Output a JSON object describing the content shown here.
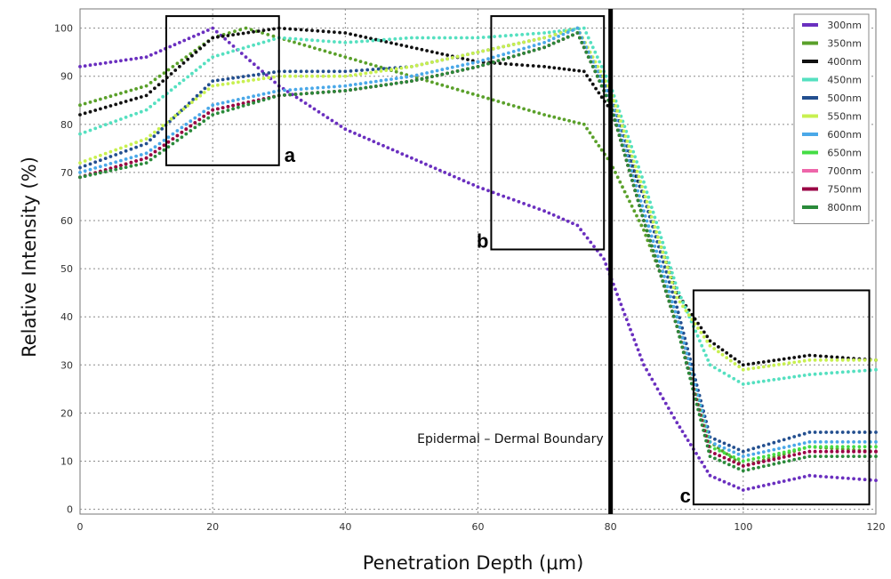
{
  "chart_data": {
    "type": "scatter",
    "title": "",
    "xlabel": "Penetration Depth (μm)",
    "ylabel": "Relative Intensity (%)",
    "xlim": [
      0,
      120
    ],
    "ylim": [
      -1,
      104
    ],
    "xticks": [
      0,
      20,
      40,
      60,
      80,
      100,
      120
    ],
    "yticks": [
      0,
      10,
      20,
      30,
      40,
      50,
      60,
      70,
      80,
      90,
      100
    ],
    "grid": true,
    "legend_position": "top-right",
    "boundary": {
      "x": 80,
      "label": "Epidermal – Dermal Boundary"
    },
    "regions": [
      {
        "label": "a",
        "x": [
          13,
          30
        ],
        "y": [
          71.5,
          102.5
        ]
      },
      {
        "label": "b",
        "x": [
          62,
          79
        ],
        "y": [
          54,
          102.5
        ]
      },
      {
        "label": "c",
        "x": [
          92.5,
          119
        ],
        "y": [
          1,
          45.5
        ]
      }
    ],
    "series": [
      {
        "name": "300nm",
        "color": "#6a2fbf",
        "x": [
          0,
          10,
          20,
          30,
          40,
          50,
          60,
          70,
          75,
          79,
          85,
          90,
          95,
          100,
          110,
          120
        ],
        "y": [
          92,
          94,
          100,
          88,
          79,
          73,
          67,
          62,
          59,
          52,
          30,
          18,
          7,
          4,
          7,
          6
        ]
      },
      {
        "name": "350nm",
        "color": "#5aa02a",
        "x": [
          0,
          10,
          20,
          25,
          30,
          40,
          50,
          60,
          70,
          76,
          80,
          85,
          90,
          95,
          100,
          110,
          120
        ],
        "y": [
          84,
          88,
          98,
          100,
          98,
          94,
          90,
          86,
          82,
          80,
          72,
          58,
          40,
          14,
          9,
          13,
          12
        ]
      },
      {
        "name": "400nm",
        "color": "#111111",
        "x": [
          0,
          10,
          20,
          30,
          40,
          50,
          60,
          70,
          76,
          80,
          85,
          90,
          95,
          100,
          110,
          120
        ],
        "y": [
          82,
          86,
          98,
          100,
          99,
          96,
          93,
          92,
          91,
          83,
          65,
          45,
          35,
          30,
          32,
          31
        ]
      },
      {
        "name": "450nm",
        "color": "#55e0c0",
        "x": [
          0,
          10,
          20,
          30,
          40,
          50,
          60,
          70,
          76,
          80,
          85,
          90,
          95,
          100,
          110,
          120
        ],
        "y": [
          78,
          83,
          94,
          98,
          97,
          98,
          98,
          99,
          100,
          88,
          68,
          46,
          30,
          26,
          28,
          29
        ]
      },
      {
        "name": "500nm",
        "color": "#234f8f",
        "x": [
          0,
          10,
          20,
          30,
          40,
          50,
          60,
          70,
          75,
          80,
          85,
          90,
          95,
          100,
          110,
          120
        ],
        "y": [
          71,
          76,
          89,
          91,
          91,
          92,
          95,
          98,
          100,
          86,
          65,
          42,
          15,
          12,
          16,
          16
        ]
      },
      {
        "name": "550nm",
        "color": "#c8f050",
        "x": [
          0,
          10,
          20,
          30,
          40,
          50,
          60,
          70,
          75,
          80,
          85,
          90,
          95,
          100,
          110,
          120
        ],
        "y": [
          72,
          77,
          88,
          90,
          90,
          92,
          95,
          98,
          100,
          87,
          66,
          44,
          34,
          29,
          31,
          31
        ]
      },
      {
        "name": "600nm",
        "color": "#4aa8e8",
        "x": [
          0,
          10,
          20,
          30,
          40,
          50,
          60,
          70,
          75,
          80,
          85,
          90,
          95,
          100,
          110,
          120
        ],
        "y": [
          70,
          74,
          84,
          87,
          88,
          90,
          93,
          97,
          100,
          85,
          62,
          40,
          14,
          11,
          14,
          14
        ]
      },
      {
        "name": "650nm",
        "color": "#44dd44",
        "x": [
          0,
          10,
          20,
          30,
          40,
          50,
          60,
          70,
          75,
          80,
          85,
          90,
          95,
          100,
          110,
          120
        ],
        "y": [
          69,
          73,
          83,
          86,
          87,
          89,
          92,
          96,
          99,
          84,
          60,
          38,
          13,
          10,
          13,
          13
        ]
      },
      {
        "name": "700nm",
        "color": "#ee66aa",
        "x": [
          0,
          10,
          20,
          30,
          40,
          50,
          60,
          70,
          75,
          80,
          85,
          90,
          95,
          100,
          110,
          120
        ],
        "y": [
          69,
          73,
          83,
          86,
          87,
          89,
          92,
          96,
          99,
          84,
          60,
          38,
          12,
          9,
          12,
          12
        ]
      },
      {
        "name": "750nm",
        "color": "#990044",
        "x": [
          0,
          10,
          20,
          30,
          40,
          50,
          60,
          70,
          75,
          80,
          85,
          90,
          95,
          100,
          110,
          120
        ],
        "y": [
          69,
          73,
          83,
          86,
          87,
          89,
          92,
          96,
          99,
          84,
          60,
          38,
          12,
          9,
          12,
          12
        ]
      },
      {
        "name": "800nm",
        "color": "#2a8a3a",
        "x": [
          0,
          10,
          20,
          30,
          40,
          50,
          60,
          70,
          75,
          80,
          85,
          90,
          95,
          100,
          110,
          120
        ],
        "y": [
          69,
          72,
          82,
          86,
          87,
          89,
          92,
          96,
          99,
          84,
          60,
          38,
          11,
          8,
          11,
          11
        ]
      }
    ]
  }
}
